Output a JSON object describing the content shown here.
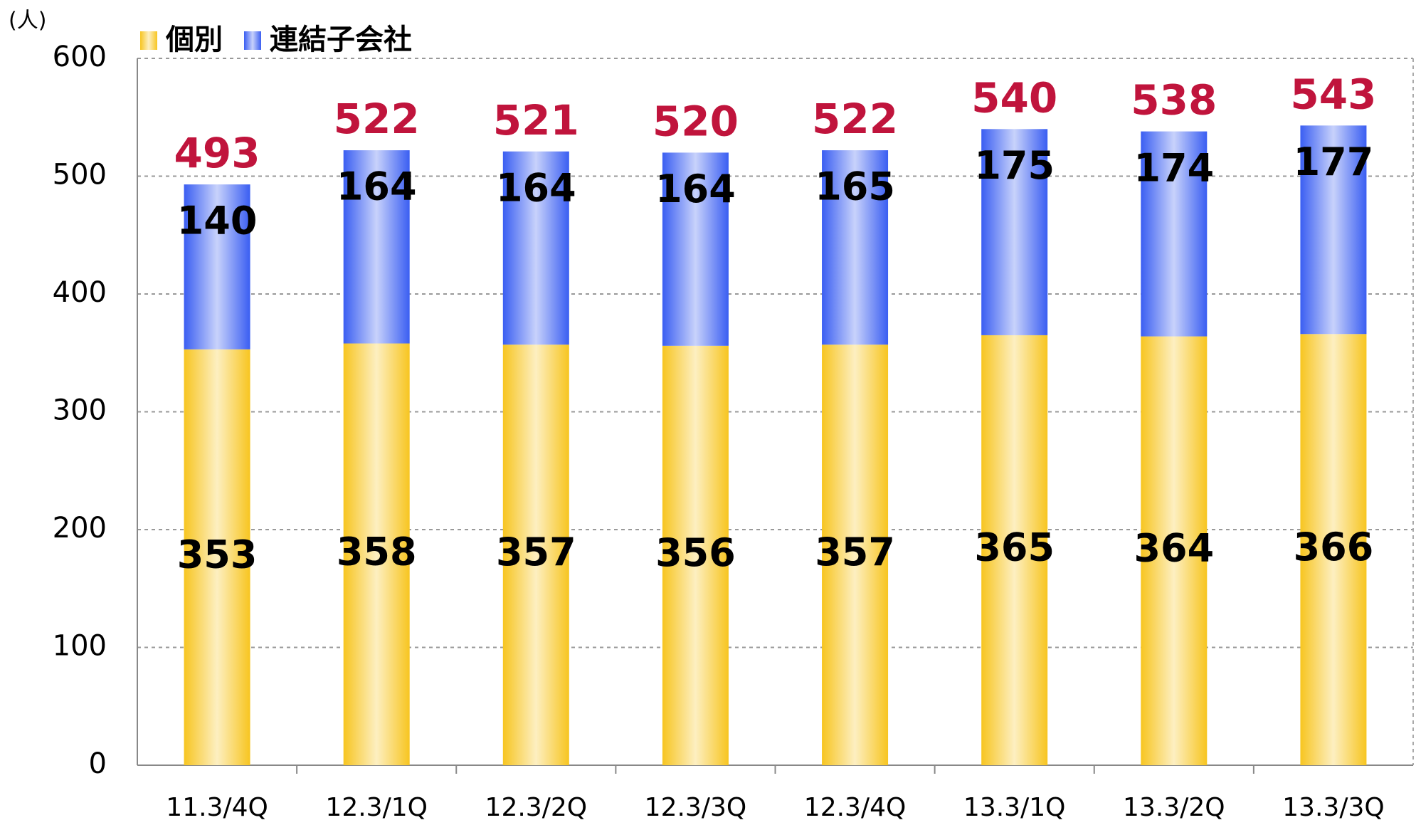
{
  "chart_data": {
    "type": "stacked_bar",
    "y_label": "(人)",
    "categories": [
      "11.3/4Q",
      "12.3/1Q",
      "12.3/2Q",
      "12.3/3Q",
      "12.3/4Q",
      "13.3/1Q",
      "13.3/2Q",
      "13.3/3Q"
    ],
    "series": [
      {
        "name": "個別",
        "color": "#f7c520",
        "values": [
          353,
          358,
          357,
          356,
          357,
          365,
          364,
          366
        ]
      },
      {
        "name": "連結子会社",
        "color": "#3a5ef2",
        "values": [
          140,
          164,
          164,
          164,
          165,
          175,
          174,
          177
        ]
      }
    ],
    "totals": [
      493,
      522,
      521,
      520,
      522,
      540,
      538,
      543
    ],
    "total_color": "#c0143c",
    "ylim": [
      0,
      600
    ],
    "yticks": [
      0,
      100,
      200,
      300,
      400,
      500,
      600
    ],
    "grid": true,
    "legend": "top-left"
  }
}
